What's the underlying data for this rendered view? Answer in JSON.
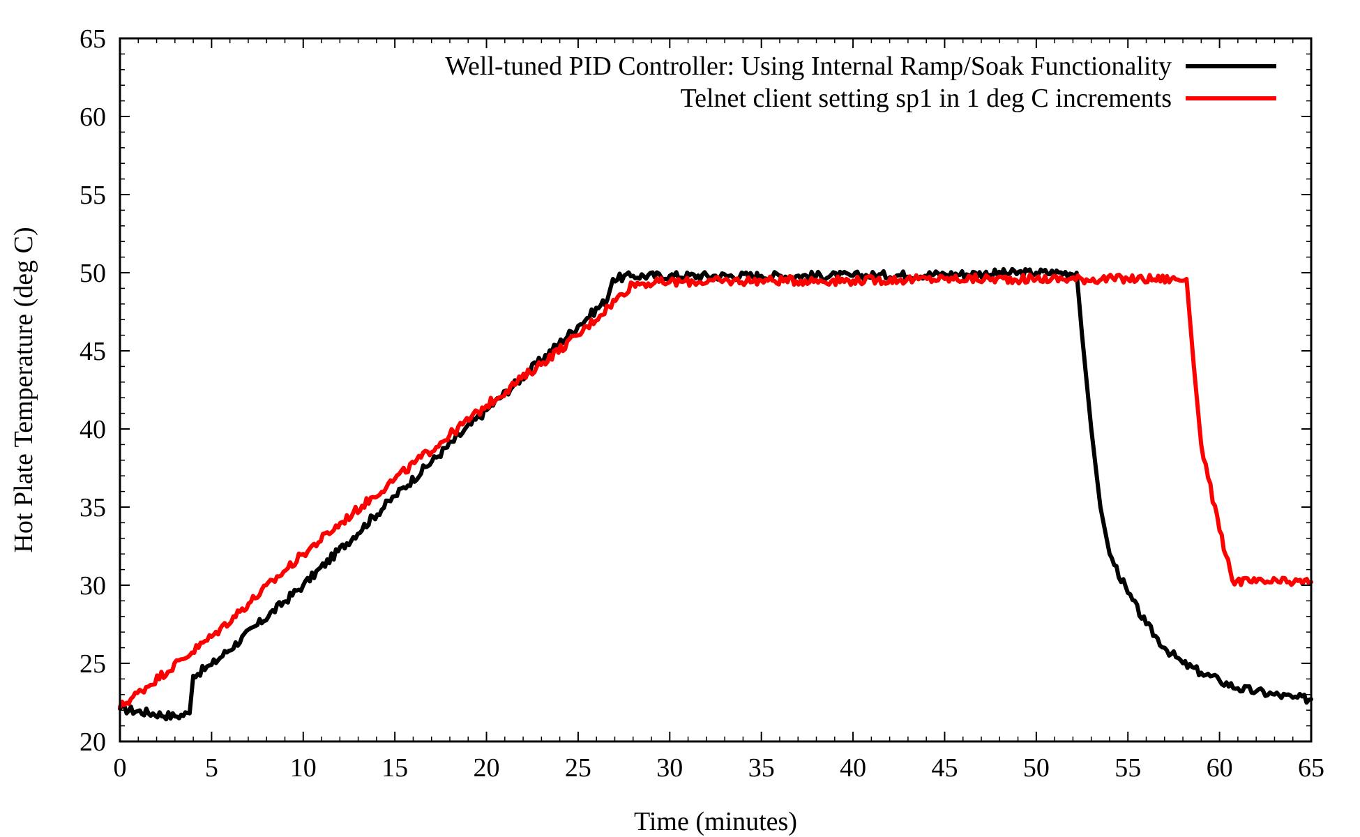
{
  "chart_data": {
    "type": "line",
    "title": "",
    "xlabel": "Time (minutes)",
    "ylabel": "Hot Plate Temperature (deg C)",
    "xlim": [
      0,
      65
    ],
    "ylim": [
      20,
      65
    ],
    "xticks": [
      0,
      5,
      10,
      15,
      20,
      25,
      30,
      35,
      40,
      45,
      50,
      55,
      60,
      65
    ],
    "yticks": [
      20,
      25,
      30,
      35,
      40,
      45,
      50,
      55,
      60,
      65
    ],
    "grid": false,
    "legend_position": "top-right",
    "series": [
      {
        "name": "Well-tuned PID Controller: Using Internal Ramp/Soak Functionality",
        "color": "#000000",
        "x": [
          0,
          3,
          3.8,
          4.0,
          5,
          10,
          15,
          20,
          25,
          26.6,
          26.9,
          28,
          30,
          35,
          40,
          45,
          50,
          52.2,
          52.5,
          53,
          53.5,
          54,
          55,
          56,
          57,
          58,
          59,
          60,
          61,
          62,
          63,
          64,
          65
        ],
        "y": [
          22.1,
          21.6,
          21.8,
          24.2,
          24.9,
          30.0,
          35.7,
          41.2,
          46.6,
          48.3,
          49.6,
          49.8,
          49.8,
          49.8,
          49.8,
          49.9,
          50.0,
          50.0,
          46.0,
          40.0,
          35.0,
          32.0,
          29.5,
          27.5,
          26.0,
          25.0,
          24.4,
          23.9,
          23.4,
          23.2,
          23.0,
          22.8,
          22.7
        ]
      },
      {
        "name": "Telnet client setting sp1 in 1 deg C increments",
        "color": "#ff0000",
        "x": [
          0,
          5,
          10,
          15,
          20,
          25,
          28,
          30,
          35,
          40,
          45,
          50,
          55,
          58.2,
          58.6,
          59,
          60,
          60.7,
          62,
          65
        ],
        "y": [
          22.2,
          26.7,
          32.0,
          36.8,
          41.5,
          46.0,
          49.3,
          49.4,
          49.5,
          49.5,
          49.6,
          49.6,
          49.6,
          49.6,
          44.0,
          39.0,
          33.5,
          30.3,
          30.2,
          30.2
        ]
      }
    ]
  }
}
